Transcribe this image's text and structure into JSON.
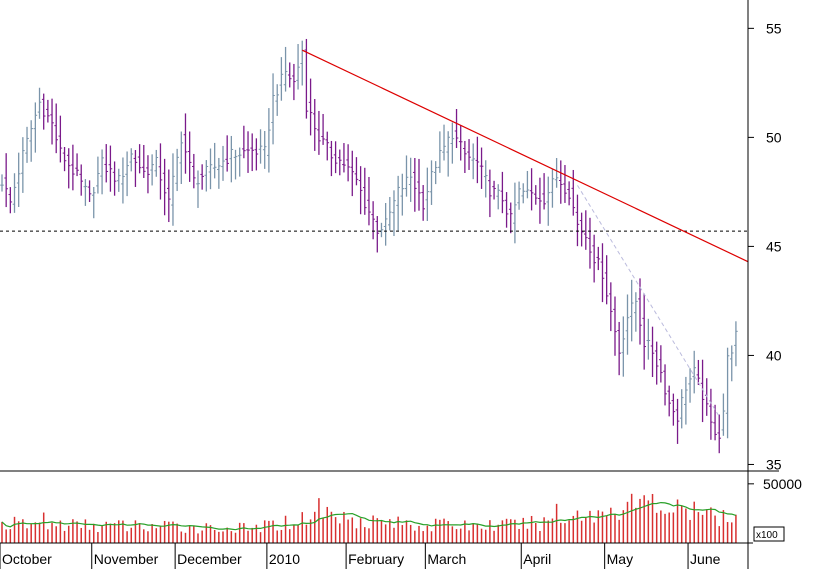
{
  "chart_data": {
    "type": "bar",
    "subtype": "ohlc-price-with-volume",
    "grid": false,
    "price_axis": {
      "position": "right",
      "scale": "linear",
      "ylim": [
        34.7,
        56.3
      ],
      "ticks": [
        35,
        40,
        45,
        50,
        55
      ],
      "tick_labels": [
        "35",
        "40",
        "45",
        "50",
        "55"
      ]
    },
    "volume_axis": {
      "position": "right",
      "ylim": [
        0,
        60000
      ],
      "ticks": [
        50000
      ],
      "tick_labels": [
        "50000"
      ],
      "multiplier_label": "x100"
    },
    "x_axis": {
      "month_labels": [
        "October",
        "November",
        "December",
        "2010",
        "February",
        "March",
        "April",
        "May",
        "June"
      ],
      "month_start_index": [
        0,
        22,
        42,
        64,
        83,
        102,
        125,
        145,
        165
      ],
      "bar_count": 177
    },
    "price_waypoints": [
      {
        "i": 0,
        "close": 48.0
      },
      {
        "i": 2,
        "close": 47.0
      },
      {
        "i": 5,
        "close": 49.2
      },
      {
        "i": 9,
        "close": 51.6
      },
      {
        "i": 12,
        "close": 50.6
      },
      {
        "i": 14,
        "close": 49.3
      },
      {
        "i": 18,
        "close": 48.2
      },
      {
        "i": 21,
        "close": 47.2
      },
      {
        "i": 24,
        "close": 48.8
      },
      {
        "i": 28,
        "close": 48.0
      },
      {
        "i": 31,
        "close": 49.2
      },
      {
        "i": 34,
        "close": 48.4
      },
      {
        "i": 37,
        "close": 48.8
      },
      {
        "i": 40,
        "close": 47.0
      },
      {
        "i": 43,
        "close": 50.0
      },
      {
        "i": 46,
        "close": 48.0
      },
      {
        "i": 50,
        "close": 48.5
      },
      {
        "i": 55,
        "close": 49.2
      },
      {
        "i": 60,
        "close": 49.4
      },
      {
        "i": 63,
        "close": 49.3
      },
      {
        "i": 65,
        "close": 51.8
      },
      {
        "i": 68,
        "close": 53.0
      },
      {
        "i": 70,
        "close": 52.5
      },
      {
        "i": 72,
        "close": 54.0
      },
      {
        "i": 73,
        "close": 51.5
      },
      {
        "i": 76,
        "close": 50.0
      },
      {
        "i": 79,
        "close": 49.2
      },
      {
        "i": 82,
        "close": 48.8
      },
      {
        "i": 85,
        "close": 48.0
      },
      {
        "i": 87,
        "close": 47.0
      },
      {
        "i": 90,
        "close": 45.8
      },
      {
        "i": 92,
        "close": 46.0
      },
      {
        "i": 95,
        "close": 47.5
      },
      {
        "i": 98,
        "close": 48.2
      },
      {
        "i": 101,
        "close": 47.0
      },
      {
        "i": 104,
        "close": 48.8
      },
      {
        "i": 108,
        "close": 50.2
      },
      {
        "i": 111,
        "close": 49.2
      },
      {
        "i": 114,
        "close": 48.8
      },
      {
        "i": 117,
        "close": 47.6
      },
      {
        "i": 120,
        "close": 47.2
      },
      {
        "i": 122,
        "close": 46.2
      },
      {
        "i": 124,
        "close": 47.5
      },
      {
        "i": 127,
        "close": 47.4
      },
      {
        "i": 130,
        "close": 47.2
      },
      {
        "i": 133,
        "close": 48.2
      },
      {
        "i": 136,
        "close": 47.5
      },
      {
        "i": 138,
        "close": 46.0
      },
      {
        "i": 140,
        "close": 45.5
      },
      {
        "i": 142,
        "close": 44.5
      },
      {
        "i": 144,
        "close": 43.8
      },
      {
        "i": 146,
        "close": 42.0
      },
      {
        "i": 148,
        "close": 40.2
      },
      {
        "i": 150,
        "close": 41.8
      },
      {
        "i": 152,
        "close": 42.5
      },
      {
        "i": 154,
        "close": 40.6
      },
      {
        "i": 156,
        "close": 40.2
      },
      {
        "i": 158,
        "close": 39.2
      },
      {
        "i": 160,
        "close": 37.8
      },
      {
        "i": 162,
        "close": 37.2
      },
      {
        "i": 164,
        "close": 38.6
      },
      {
        "i": 166,
        "close": 39.2
      },
      {
        "i": 168,
        "close": 38.2
      },
      {
        "i": 170,
        "close": 36.8
      },
      {
        "i": 172,
        "close": 36.4
      },
      {
        "i": 173,
        "close": 37.5
      },
      {
        "i": 174,
        "close": 39.8
      },
      {
        "i": 176,
        "close": 40.9
      }
    ],
    "volume_waypoints": [
      {
        "i": 0,
        "v": 16000
      },
      {
        "i": 20,
        "v": 15000
      },
      {
        "i": 40,
        "v": 14000
      },
      {
        "i": 60,
        "v": 12000
      },
      {
        "i": 72,
        "v": 20000
      },
      {
        "i": 76,
        "v": 30000
      },
      {
        "i": 80,
        "v": 22000
      },
      {
        "i": 100,
        "v": 15000
      },
      {
        "i": 120,
        "v": 15000
      },
      {
        "i": 135,
        "v": 18000
      },
      {
        "i": 145,
        "v": 27000
      },
      {
        "i": 150,
        "v": 34000
      },
      {
        "i": 158,
        "v": 30000
      },
      {
        "i": 165,
        "v": 26000
      },
      {
        "i": 176,
        "v": 20000
      }
    ],
    "horizontal_line": {
      "value": 45.7,
      "style": "dotted",
      "color": "#000000"
    },
    "trend_line": {
      "from": {
        "i": 72,
        "price": 54.0
      },
      "to": {
        "i": 176,
        "price": 44.3
      },
      "color": "#dd0000"
    },
    "secondary_trend_line": {
      "from": {
        "i": 138,
        "price": 47.8
      },
      "to": {
        "i": 172,
        "price": 37.2
      },
      "style": "dashed",
      "color": "#bbbbdd"
    },
    "colors": {
      "up_bar": "#7a94aa",
      "down_bar": "#7a1a8a",
      "volume_bar": "#d83030",
      "volume_ma": "#28a028"
    }
  }
}
